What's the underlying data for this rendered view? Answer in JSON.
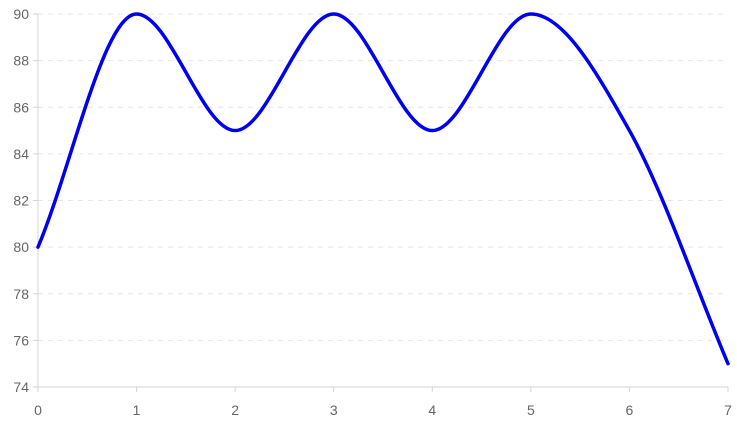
{
  "chart_data": {
    "type": "line",
    "x": [
      0,
      1,
      2,
      3,
      4,
      5,
      6,
      7
    ],
    "series": [
      {
        "values": [
          80,
          90,
          85,
          90,
          85,
          90,
          85,
          75
        ]
      }
    ],
    "x_ticks": [
      "0",
      "1",
      "2",
      "3",
      "4",
      "5",
      "6",
      "7"
    ],
    "y_ticks": [
      "74",
      "76",
      "78",
      "80",
      "82",
      "84",
      "86",
      "88",
      "90"
    ],
    "xlim": [
      0,
      7
    ],
    "ylim": [
      74,
      90
    ],
    "grid": true,
    "grid_style": "dashed-horizontal",
    "line_color": "#0000ee",
    "curve": "smooth"
  }
}
